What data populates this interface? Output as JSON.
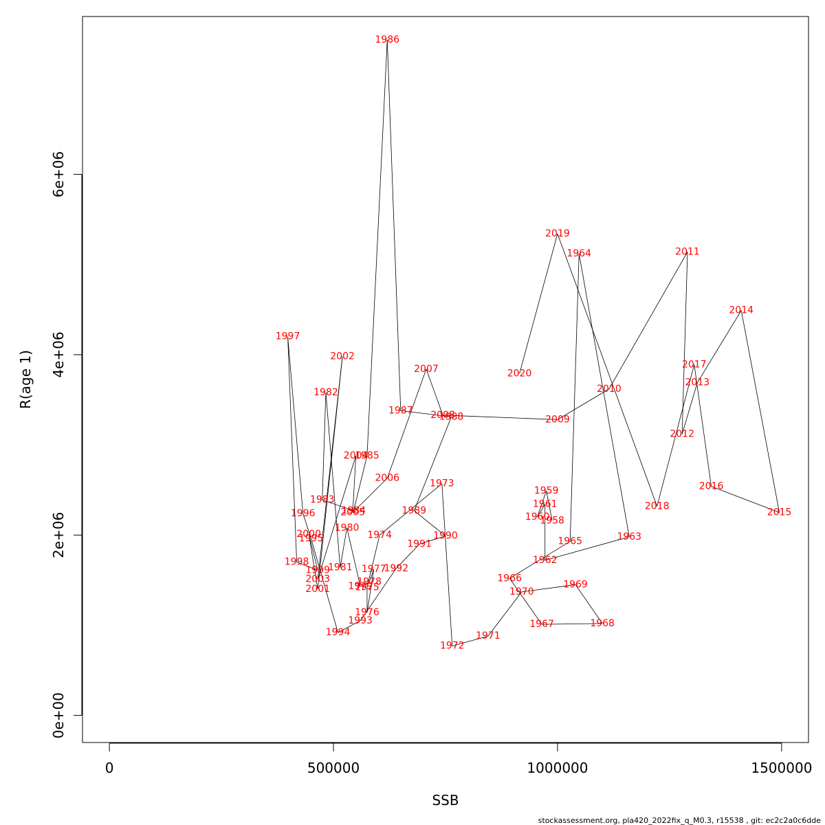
{
  "chart_data": {
    "type": "line",
    "xlabel": "SSB",
    "ylabel": "R(age 1)",
    "xlim": [
      -60000,
      1560000
    ],
    "ylim": [
      -300000,
      7750000
    ],
    "x_ticks": [
      {
        "value": 0,
        "label": "0"
      },
      {
        "value": 500000,
        "label": "500000"
      },
      {
        "value": 1000000,
        "label": "1000000"
      },
      {
        "value": 1500000,
        "label": "1500000"
      }
    ],
    "y_ticks": [
      {
        "value": 0,
        "label": "0e+00"
      },
      {
        "value": 2000000,
        "label": "2e+06"
      },
      {
        "value": 4000000,
        "label": "4e+06"
      },
      {
        "value": 6000000,
        "label": "6e+06"
      }
    ],
    "line_color": "#000000",
    "label_color": "#ff0000",
    "points": [
      {
        "year": "1958",
        "x": 988000,
        "y": 2160000
      },
      {
        "year": "1959",
        "x": 975000,
        "y": 2490000
      },
      {
        "year": "1960",
        "x": 955000,
        "y": 2200000
      },
      {
        "year": "1961",
        "x": 972000,
        "y": 2340000
      },
      {
        "year": "1962",
        "x": 972000,
        "y": 1720000
      },
      {
        "year": "1963",
        "x": 1160000,
        "y": 1980000
      },
      {
        "year": "1964",
        "x": 1048000,
        "y": 5120000
      },
      {
        "year": "1965",
        "x": 1028000,
        "y": 1930000
      },
      {
        "year": "1966",
        "x": 893000,
        "y": 1520000
      },
      {
        "year": "1967",
        "x": 965000,
        "y": 1010000
      },
      {
        "year": "1968",
        "x": 1100000,
        "y": 1020000
      },
      {
        "year": "1969",
        "x": 1040000,
        "y": 1450000
      },
      {
        "year": "1970",
        "x": 920000,
        "y": 1370000
      },
      {
        "year": "1971",
        "x": 845000,
        "y": 880000
      },
      {
        "year": "1972",
        "x": 765000,
        "y": 770000
      },
      {
        "year": "1973",
        "x": 742000,
        "y": 2570000
      },
      {
        "year": "1974",
        "x": 603000,
        "y": 2000000
      },
      {
        "year": "1975",
        "x": 575000,
        "y": 1420000
      },
      {
        "year": "1976",
        "x": 575000,
        "y": 1140000
      },
      {
        "year": "1977",
        "x": 590000,
        "y": 1620000
      },
      {
        "year": "1978",
        "x": 580000,
        "y": 1480000
      },
      {
        "year": "1979",
        "x": 560000,
        "y": 1430000
      },
      {
        "year": "1980",
        "x": 530000,
        "y": 2080000
      },
      {
        "year": "1981",
        "x": 515000,
        "y": 1640000
      },
      {
        "year": "1982",
        "x": 483000,
        "y": 3580000
      },
      {
        "year": "1983",
        "x": 475000,
        "y": 2390000
      },
      {
        "year": "1984",
        "x": 545000,
        "y": 2270000
      },
      {
        "year": "1985",
        "x": 575000,
        "y": 2880000
      },
      {
        "year": "1986",
        "x": 620000,
        "y": 7490000
      },
      {
        "year": "1987",
        "x": 650000,
        "y": 3380000
      },
      {
        "year": "1988",
        "x": 763000,
        "y": 3310000
      },
      {
        "year": "1989",
        "x": 680000,
        "y": 2270000
      },
      {
        "year": "1990",
        "x": 750000,
        "y": 1990000
      },
      {
        "year": "1991",
        "x": 692000,
        "y": 1900000
      },
      {
        "year": "1992",
        "x": 640000,
        "y": 1630000
      },
      {
        "year": "1993",
        "x": 560000,
        "y": 1050000
      },
      {
        "year": "1994",
        "x": 510000,
        "y": 920000
      },
      {
        "year": "1995",
        "x": 450000,
        "y": 1960000
      },
      {
        "year": "1996",
        "x": 432000,
        "y": 2240000
      },
      {
        "year": "1997",
        "x": 398000,
        "y": 4200000
      },
      {
        "year": "1998",
        "x": 418000,
        "y": 1700000
      },
      {
        "year": "1999",
        "x": 465000,
        "y": 1610000
      },
      {
        "year": "2000",
        "x": 445000,
        "y": 2010000
      },
      {
        "year": "2001",
        "x": 465000,
        "y": 1400000
      },
      {
        "year": "2002",
        "x": 520000,
        "y": 3980000
      },
      {
        "year": "2003",
        "x": 465000,
        "y": 1510000
      },
      {
        "year": "2004",
        "x": 550000,
        "y": 2880000
      },
      {
        "year": "2005",
        "x": 543000,
        "y": 2250000
      },
      {
        "year": "2006",
        "x": 620000,
        "y": 2630000
      },
      {
        "year": "2007",
        "x": 707000,
        "y": 3840000
      },
      {
        "year": "2008",
        "x": 744000,
        "y": 3330000
      },
      {
        "year": "2009",
        "x": 1000000,
        "y": 3280000
      },
      {
        "year": "2010",
        "x": 1115000,
        "y": 3620000
      },
      {
        "year": "2011",
        "x": 1290000,
        "y": 5140000
      },
      {
        "year": "2012",
        "x": 1278000,
        "y": 3120000
      },
      {
        "year": "2013",
        "x": 1312000,
        "y": 3690000
      },
      {
        "year": "2014",
        "x": 1410000,
        "y": 4490000
      },
      {
        "year": "2015",
        "x": 1495000,
        "y": 2250000
      },
      {
        "year": "2016",
        "x": 1343000,
        "y": 2540000
      },
      {
        "year": "2017",
        "x": 1305000,
        "y": 3890000
      },
      {
        "year": "2018",
        "x": 1222000,
        "y": 2320000
      },
      {
        "year": "2019",
        "x": 1000000,
        "y": 5340000
      },
      {
        "year": "2020",
        "x": 915000,
        "y": 3790000
      }
    ]
  },
  "footer_text": "stockassessment.org, pla420_2022fix_q_M0.3, r15538 , git: ec2c2a0c6dde"
}
